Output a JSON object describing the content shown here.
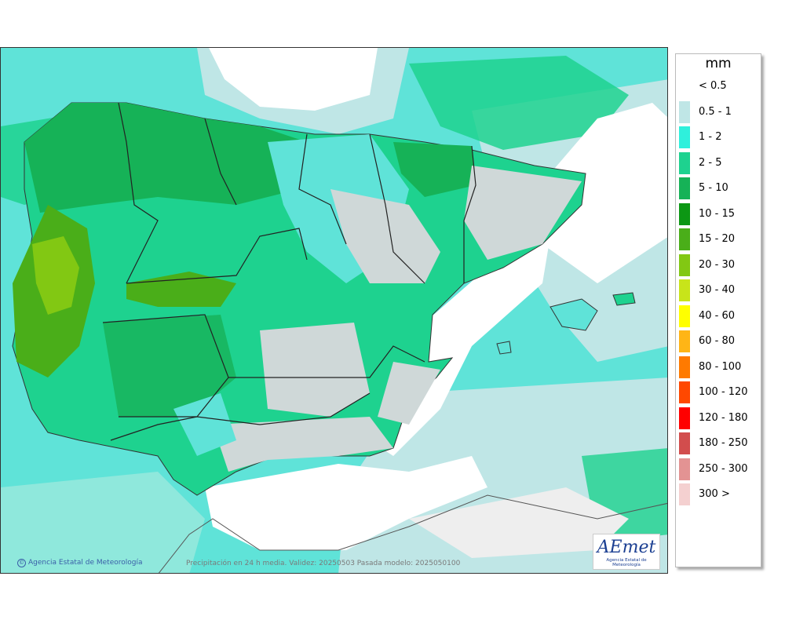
{
  "legend": {
    "title": "mm",
    "items": [
      {
        "label": "< 0.5",
        "color": "#ffffff"
      },
      {
        "label": "0.5 - 1",
        "color": "#bfe6e6"
      },
      {
        "label": "1 - 2",
        "color": "#2ff0dc"
      },
      {
        "label": "2 - 5",
        "color": "#1ed28f"
      },
      {
        "label": "5 - 10",
        "color": "#16b257"
      },
      {
        "label": "10 - 15",
        "color": "#0c9714"
      },
      {
        "label": "15 - 20",
        "color": "#4aae19"
      },
      {
        "label": "20 - 30",
        "color": "#82c813"
      },
      {
        "label": "30 - 40",
        "color": "#c8e41a"
      },
      {
        "label": "40 - 60",
        "color": "#ffff00"
      },
      {
        "label": "60 - 80",
        "color": "#ffb516"
      },
      {
        "label": "80 - 100",
        "color": "#ff7a00"
      },
      {
        "label": "100 - 120",
        "color": "#ff4800"
      },
      {
        "label": "120 - 180",
        "color": "#ff0000"
      },
      {
        "label": "180 - 250",
        "color": "#d24d4d"
      },
      {
        "label": "250 - 300",
        "color": "#e39393"
      },
      {
        "label": "300 >",
        "color": "#f4d0d0"
      }
    ]
  },
  "footer": {
    "credit": "Agencia Estatal de Meteorología",
    "info": "Precipitación en 24 h media. Validez: 20250503 Pasada modelo: 2025050100"
  },
  "logo": {
    "word": "AEmet",
    "subtitle": "Agencia Estatal de Meteorología"
  },
  "colors": {
    "sea_light": "#5fe3d8",
    "land_green": "#16b257",
    "land_mid": "#1ed28f",
    "land_dry": "#cfd8d8",
    "outside_white": "#ffffff",
    "border": "#333333"
  }
}
